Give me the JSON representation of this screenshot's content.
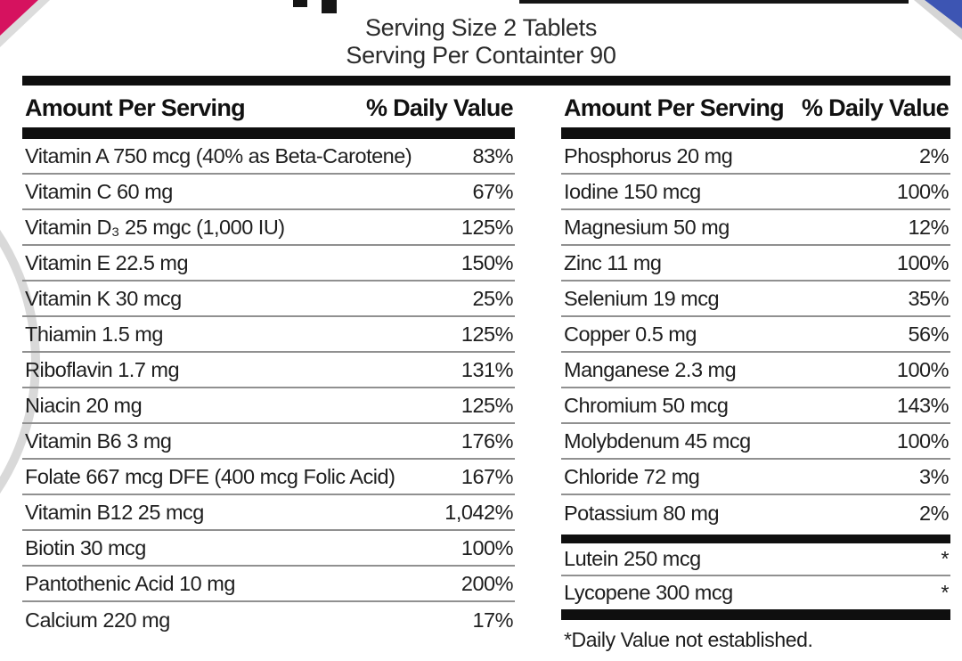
{
  "header": {
    "serving_size": "Serving Size 2 Tablets",
    "servings_per_container": "Serving Per Containter 90"
  },
  "left_table": {
    "amount_header": "Amount Per Serving",
    "dv_header": "% Daily Value",
    "rows": [
      {
        "label": "Vitamin A 750 mcg (40% as Beta-Carotene)",
        "value": "83%"
      },
      {
        "label": "Vitamin C 60 mg",
        "value": "67%"
      },
      {
        "label": "Vitamin D₃ 25 mgc (1,000 IU)",
        "value": "125%"
      },
      {
        "label": "Vitamin E 22.5 mg",
        "value": "150%"
      },
      {
        "label": "Vitamin K 30 mcg",
        "value": "25%"
      },
      {
        "label": "Thiamin 1.5 mg",
        "value": "125%"
      },
      {
        "label": "Riboflavin 1.7 mg",
        "value": "131%"
      },
      {
        "label": "Niacin 20 mg",
        "value": "125%"
      },
      {
        "label": "Vitamin B6 3 mg",
        "value": "176%"
      },
      {
        "label": "Folate 667 mcg DFE (400 mcg Folic Acid)",
        "value": "167%"
      },
      {
        "label": "Vitamin B12 25 mcg",
        "value": "1,042%"
      },
      {
        "label": "Biotin 30 mcg",
        "value": "100%"
      },
      {
        "label": "Pantothenic Acid 10 mg",
        "value": "200%"
      },
      {
        "label": "Calcium 220 mg",
        "value": "17%"
      }
    ]
  },
  "right_table": {
    "amount_header": "Amount Per Serving",
    "dv_header": "% Daily Value",
    "rows": [
      {
        "label": "Phosphorus 20 mg",
        "value": "2%"
      },
      {
        "label": "Iodine 150 mcg",
        "value": "100%"
      },
      {
        "label": "Magnesium 50 mg",
        "value": "12%"
      },
      {
        "label": "Zinc 11 mg",
        "value": "100%"
      },
      {
        "label": "Selenium 19 mcg",
        "value": "35%"
      },
      {
        "label": "Copper 0.5 mg",
        "value": "56%"
      },
      {
        "label": "Manganese 2.3 mg",
        "value": "100%"
      },
      {
        "label": "Chromium 50 mcg",
        "value": "143%"
      },
      {
        "label": "Molybdenum 45 mcg",
        "value": "100%"
      },
      {
        "label": "Chloride 72 mg",
        "value": "3%"
      },
      {
        "label": "Potassium 80 mg",
        "value": "2%"
      }
    ],
    "other_rows": [
      {
        "label": "Lutein 250 mcg",
        "value": "*"
      },
      {
        "label": "Lycopene 300 mcg",
        "value": "*"
      }
    ],
    "footnote": "*Daily Value not established."
  },
  "colors": {
    "accent_pink": "#d6125f",
    "accent_blue": "#3d55b3",
    "stripe_gray": "#d9d9d9",
    "bar_black": "#0f0f0f",
    "divider_gray": "#909090"
  }
}
